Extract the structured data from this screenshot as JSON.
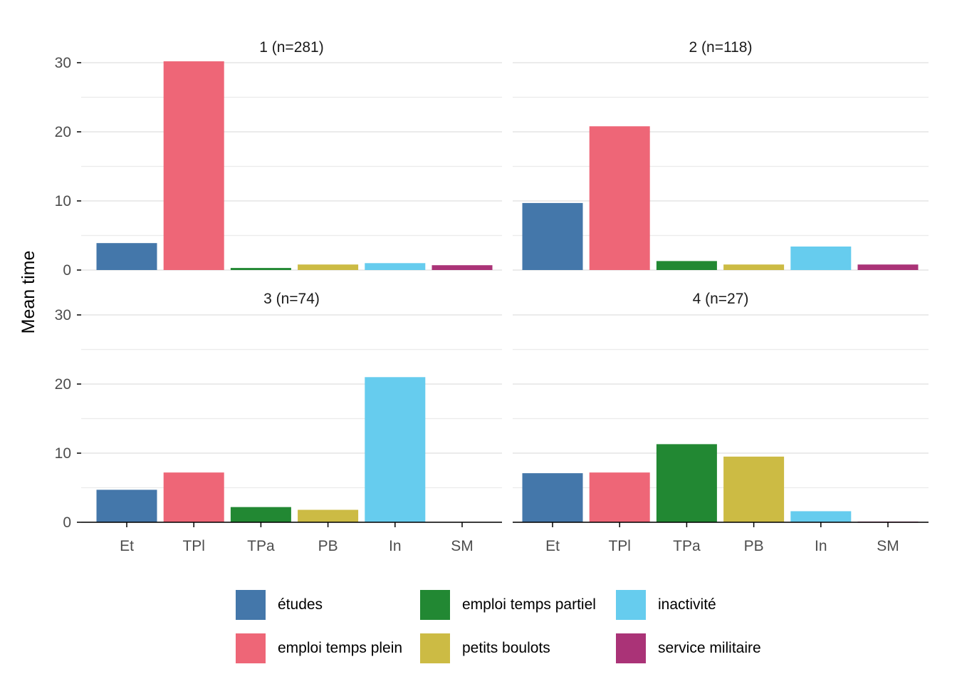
{
  "chart_data": {
    "type": "bar",
    "ylabel": "Mean time",
    "xlabel": "",
    "ylim": [
      0,
      31
    ],
    "yticks": [
      0,
      10,
      20,
      30
    ],
    "grid": true,
    "legend_position": "bottom",
    "categories": [
      "Et",
      "TPl",
      "TPa",
      "PB",
      "In",
      "SM"
    ],
    "series_names": [
      "études",
      "emploi temps plein",
      "emploi temps partiel",
      "petits boulots",
      "inactivité",
      "service militaire"
    ],
    "colors": [
      "#4477AA",
      "#EE6677",
      "#228833",
      "#CCBB44",
      "#66CCEE",
      "#AA3377"
    ],
    "panels": [
      {
        "title": "1 (n=281)",
        "values": [
          3.9,
          30.2,
          0.3,
          0.8,
          1.0,
          0.7
        ]
      },
      {
        "title": "2 (n=118)",
        "values": [
          9.7,
          20.8,
          1.3,
          0.8,
          3.4,
          0.8
        ]
      },
      {
        "title": "3 (n=74)",
        "values": [
          4.7,
          7.2,
          2.2,
          1.8,
          21.0,
          0.0
        ]
      },
      {
        "title": "4 (n=27)",
        "values": [
          7.1,
          7.2,
          11.3,
          9.5,
          1.6,
          0.1
        ]
      }
    ]
  },
  "legend": {
    "items": [
      {
        "label": "études",
        "color": "#4477AA"
      },
      {
        "label": "emploi temps plein",
        "color": "#EE6677"
      },
      {
        "label": "emploi temps partiel",
        "color": "#228833"
      },
      {
        "label": "petits boulots",
        "color": "#CCBB44"
      },
      {
        "label": "inactivité",
        "color": "#66CCEE"
      },
      {
        "label": "service militaire",
        "color": "#AA3377"
      }
    ]
  }
}
